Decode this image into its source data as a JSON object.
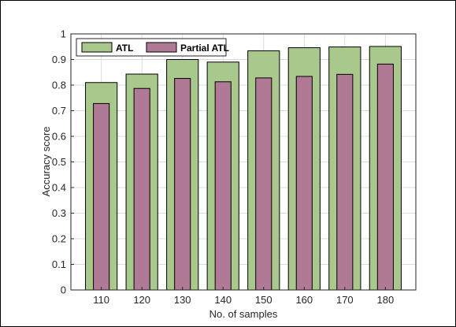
{
  "chart_data": {
    "type": "bar",
    "categories": [
      "110",
      "120",
      "130",
      "140",
      "150",
      "160",
      "170",
      "180"
    ],
    "series": [
      {
        "name": "ATL",
        "values": [
          0.81,
          0.843,
          0.9,
          0.89,
          0.934,
          0.946,
          0.949,
          0.951
        ],
        "color": "#a9c88c"
      },
      {
        "name": "Partial ATL",
        "values": [
          0.728,
          0.787,
          0.826,
          0.813,
          0.828,
          0.834,
          0.842,
          0.882
        ],
        "color": "#b07a97"
      }
    ],
    "xlabel": "No. of samples",
    "ylabel": "Accuracy score",
    "ylim": [
      0,
      1
    ],
    "yticks": [
      "0",
      "0.1",
      "0.2",
      "0.3",
      "0.4",
      "0.5",
      "0.6",
      "0.7",
      "0.8",
      "0.9",
      "1"
    ],
    "grid": true,
    "legend_position": "top-left"
  }
}
